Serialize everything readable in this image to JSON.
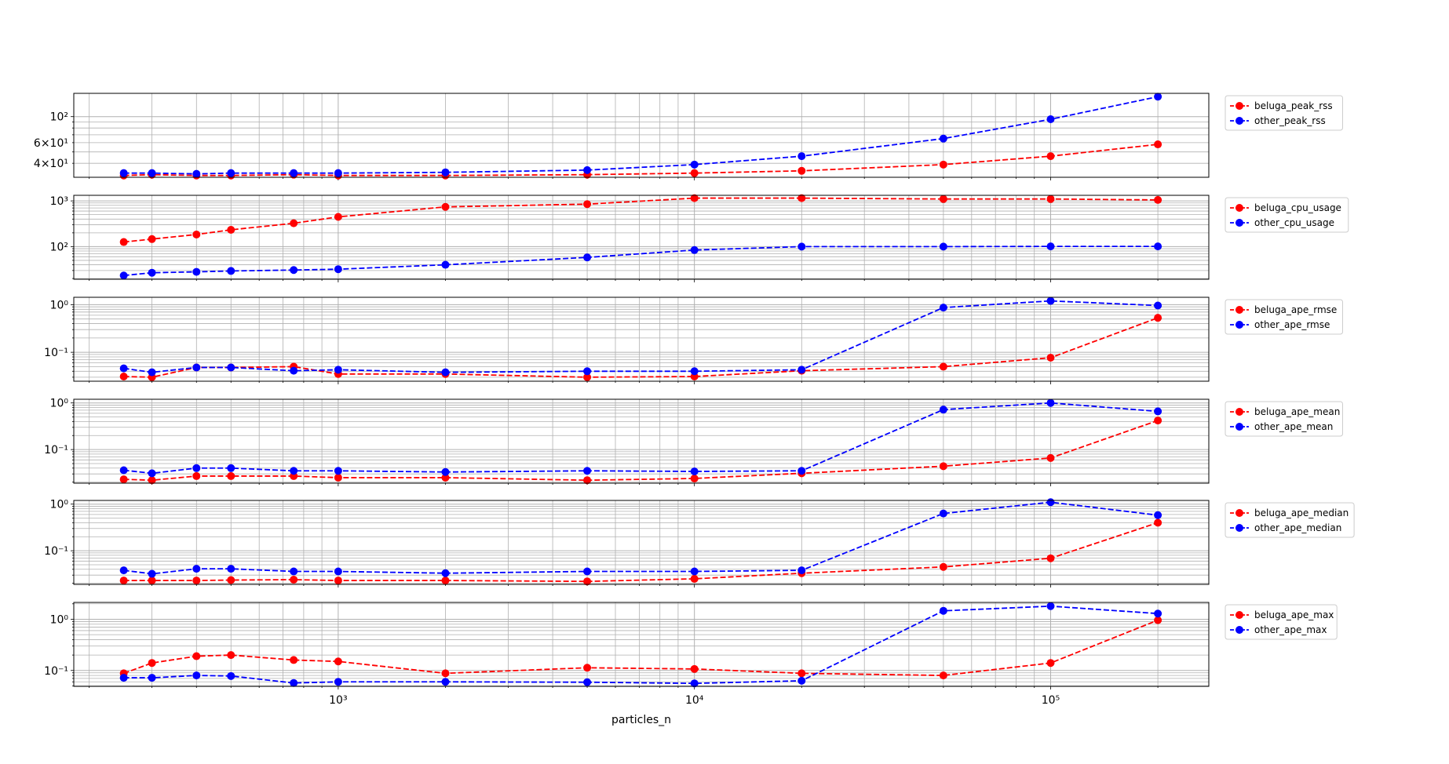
{
  "chart_data": {
    "type": "line",
    "layout": "6 stacked subplots sharing x-axis",
    "xlabel": "particles_n",
    "xscale": "log",
    "yscale": "log",
    "grid": "major and minor, both axes",
    "legend_placement": "outside right of each subplot, top",
    "xlim": [
      181,
      278000
    ],
    "x": [
      250,
      300,
      400,
      500,
      750,
      1000,
      2000,
      5000,
      10000,
      20000,
      50000,
      100000,
      200000
    ],
    "x_ticks": [
      {
        "value": 1000,
        "label": "10³"
      },
      {
        "value": 10000,
        "label": "10⁴"
      },
      {
        "value": 100000,
        "label": "10⁵"
      }
    ],
    "colors": {
      "beluga": "#ff0000",
      "other": "#0000ff"
    },
    "subplots": [
      {
        "ylim": [
          30.4,
          158
        ],
        "y_ticks": [
          {
            "value": 40,
            "label": "4×10¹"
          },
          {
            "value": 60,
            "label": "6×10¹"
          },
          {
            "value": 100,
            "label": "10²"
          }
        ],
        "series": [
          {
            "name": "beluga_peak_rss",
            "color": "#ff0000",
            "values": [
              31.5,
              32,
              31.5,
              31.5,
              32,
              31.5,
              31.5,
              32,
              33,
              34.5,
              39,
              46,
              58
            ]
          },
          {
            "name": "other_peak_rss",
            "color": "#0000ff",
            "values": [
              33,
              33,
              32.5,
              33,
              33,
              33,
              33.5,
              35,
              39,
              46,
              65,
              95,
              148
            ]
          }
        ]
      },
      {
        "ylim": [
          19.3,
          1325
        ],
        "y_ticks": [
          {
            "value": 100,
            "label": "10²"
          },
          {
            "value": 1000,
            "label": "10³"
          }
        ],
        "series": [
          {
            "name": "beluga_cpu_usage",
            "color": "#ff0000",
            "values": [
              126,
              146,
              184,
              233,
              324,
              447,
              740,
              850,
              1150,
              1150,
              1100,
              1100,
              1050
            ]
          },
          {
            "name": "other_cpu_usage",
            "color": "#0000ff",
            "values": [
              23.3,
              26.8,
              28,
              29.3,
              30.7,
              32,
              40,
              58,
              84,
              100,
              100,
              101,
              101
            ]
          }
        ]
      },
      {
        "ylim": [
          0.0247,
          1.43
        ],
        "y_ticks": [
          {
            "value": 0.1,
            "label": "10⁻¹"
          },
          {
            "value": 1,
            "label": "10⁰"
          }
        ],
        "series": [
          {
            "name": "beluga_ape_rmse",
            "color": "#ff0000",
            "values": [
              0.031,
              0.03,
              0.048,
              0.048,
              0.05,
              0.035,
              0.035,
              0.03,
              0.031,
              0.041,
              0.05,
              0.077,
              0.53
            ]
          },
          {
            "name": "other_ape_rmse",
            "color": "#0000ff",
            "values": [
              0.046,
              0.038,
              0.048,
              0.048,
              0.041,
              0.043,
              0.038,
              0.04,
              0.04,
              0.043,
              0.87,
              1.2,
              0.96
            ]
          }
        ]
      },
      {
        "ylim": [
          0.019,
          1.2
        ],
        "y_ticks": [
          {
            "value": 0.1,
            "label": "10⁻¹"
          },
          {
            "value": 1,
            "label": "10⁰"
          }
        ],
        "series": [
          {
            "name": "beluga_ape_mean",
            "color": "#ff0000",
            "values": [
              0.023,
              0.022,
              0.027,
              0.027,
              0.027,
              0.025,
              0.025,
              0.022,
              0.024,
              0.031,
              0.044,
              0.066,
              0.42
            ]
          },
          {
            "name": "other_ape_mean",
            "color": "#0000ff",
            "values": [
              0.036,
              0.031,
              0.04,
              0.04,
              0.035,
              0.035,
              0.033,
              0.035,
              0.034,
              0.035,
              0.72,
              1.0,
              0.66
            ]
          }
        ]
      },
      {
        "ylim": [
          0.019,
          1.2
        ],
        "y_ticks": [
          {
            "value": 0.1,
            "label": "10⁻¹"
          },
          {
            "value": 1,
            "label": "10⁰"
          }
        ],
        "series": [
          {
            "name": "beluga_ape_median",
            "color": "#ff0000",
            "values": [
              0.023,
              0.023,
              0.023,
              0.0235,
              0.024,
              0.023,
              0.023,
              0.022,
              0.025,
              0.033,
              0.045,
              0.069,
              0.4
            ]
          },
          {
            "name": "other_ape_median",
            "color": "#0000ff",
            "values": [
              0.038,
              0.032,
              0.041,
              0.041,
              0.036,
              0.036,
              0.033,
              0.036,
              0.036,
              0.038,
              0.63,
              1.1,
              0.58
            ]
          }
        ]
      },
      {
        "ylim": [
          0.049,
          2.13
        ],
        "y_ticks": [
          {
            "value": 0.1,
            "label": "10⁻¹"
          },
          {
            "value": 1,
            "label": "10⁰"
          }
        ],
        "series": [
          {
            "name": "beluga_ape_max",
            "color": "#ff0000",
            "values": [
              0.088,
              0.14,
              0.19,
              0.2,
              0.16,
              0.15,
              0.088,
              0.113,
              0.107,
              0.088,
              0.08,
              0.14,
              0.96
            ]
          },
          {
            "name": "other_ape_max",
            "color": "#0000ff",
            "values": [
              0.072,
              0.072,
              0.08,
              0.078,
              0.057,
              0.06,
              0.06,
              0.059,
              0.056,
              0.063,
              1.46,
              1.8,
              1.29
            ]
          }
        ]
      }
    ]
  }
}
